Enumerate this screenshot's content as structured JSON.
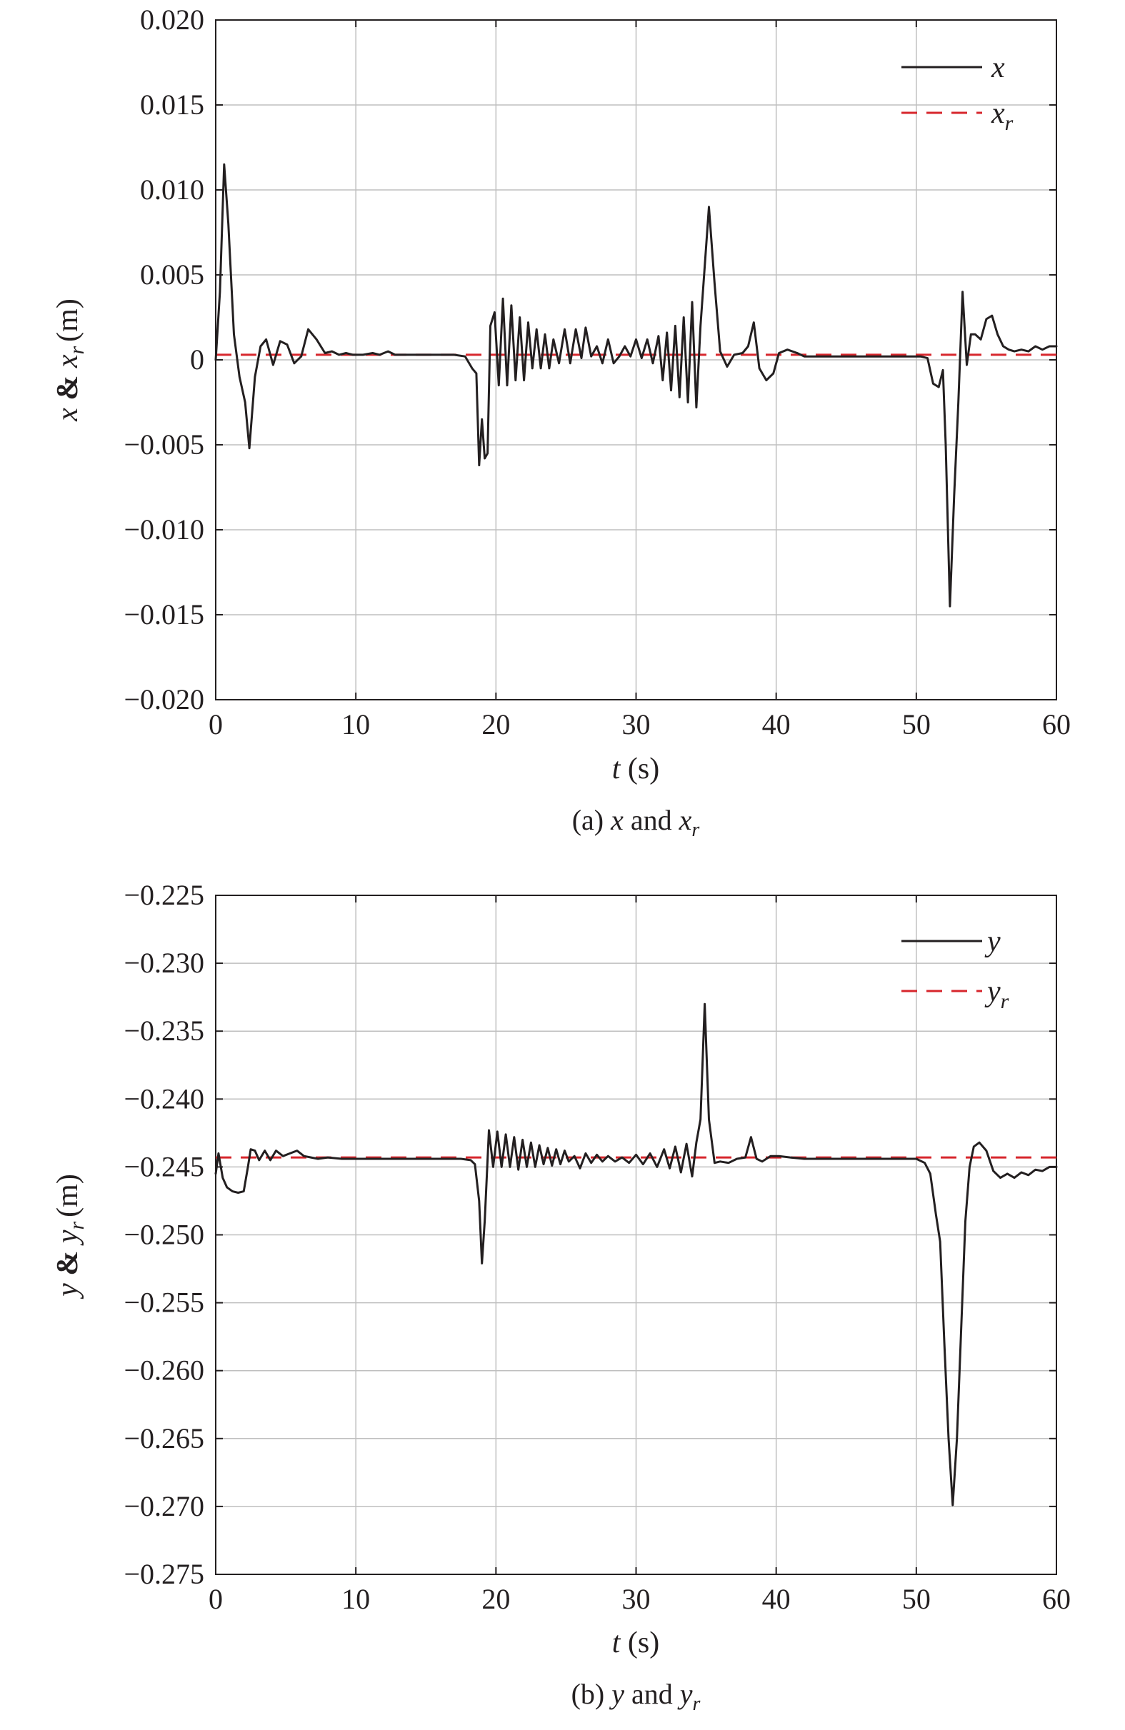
{
  "chart_data": [
    {
      "type": "line",
      "caption_prefix": "(a)",
      "caption_var": "x",
      "caption_and": "and",
      "caption_ref": "x",
      "caption_ref_sub": "r",
      "ylabel_var": "x",
      "ylabel_amp": "&",
      "ylabel_ref": "x",
      "ylabel_ref_sub": "r",
      "ylabel_unit": "(m)",
      "xlabel_var": "t",
      "xlabel_unit": "(s)",
      "xlim": [
        0,
        60
      ],
      "ylim": [
        -0.02,
        0.02
      ],
      "xticks": [
        0,
        10,
        20,
        30,
        40,
        50,
        60
      ],
      "xtick_labels": [
        "0",
        "10",
        "20",
        "30",
        "40",
        "50",
        "60"
      ],
      "yticks": [
        0.02,
        0.015,
        0.01,
        0.005,
        0,
        -0.005,
        -0.01,
        -0.015,
        -0.02
      ],
      "ytick_labels": [
        "0.020",
        "0.015",
        "0.010",
        "0.005",
        "0",
        "−0.005",
        "−0.010",
        "−0.015",
        "−0.020"
      ],
      "grid": true,
      "legend_position": "top-right",
      "colors": {
        "actual": "#231f20",
        "reference": "#d7262c",
        "grid": "#bfbfbf"
      },
      "series": [
        {
          "name": "x",
          "style": "solid",
          "x": [
            0,
            0.3,
            0.6,
            0.9,
            1.3,
            1.7,
            2.1,
            2.4,
            2.8,
            3.2,
            3.6,
            4.1,
            4.6,
            5.1,
            5.6,
            6.1,
            6.6,
            7.2,
            7.8,
            8.3,
            8.8,
            9.3,
            9.8,
            10.5,
            11.2,
            11.7,
            12.3,
            12.8,
            13.3,
            14,
            15,
            16,
            17,
            17.8,
            18.3,
            18.6,
            18.8,
            19.0,
            19.2,
            19.4,
            19.6,
            19.9,
            20.2,
            20.5,
            20.8,
            21.1,
            21.4,
            21.7,
            22.0,
            22.3,
            22.6,
            22.9,
            23.2,
            23.5,
            23.8,
            24.1,
            24.5,
            24.9,
            25.3,
            25.7,
            26.1,
            26.4,
            26.8,
            27.2,
            27.6,
            28.0,
            28.4,
            28.8,
            29.2,
            29.6,
            30.0,
            30.4,
            30.8,
            31.2,
            31.6,
            31.9,
            32.2,
            32.5,
            32.8,
            33.1,
            33.4,
            33.7,
            34.0,
            34.3,
            34.6,
            34.9,
            35.2,
            35.6,
            36.0,
            36.5,
            37.0,
            37.6,
            38.0,
            38.4,
            38.8,
            39.3,
            39.8,
            40.2,
            40.8,
            41.5,
            42,
            43,
            45,
            47,
            49,
            50.3,
            50.8,
            51.2,
            51.6,
            51.9,
            52.1,
            52.4,
            52.7,
            53.0,
            53.3,
            53.6,
            53.9,
            54.2,
            54.6,
            55.0,
            55.4,
            55.8,
            56.2,
            56.6,
            57.0,
            57.5,
            58.0,
            58.5,
            59.0,
            59.5,
            60
          ],
          "y": [
            0,
            0.004,
            0.0115,
            0.008,
            0.0015,
            -0.001,
            -0.0025,
            -0.0052,
            -0.001,
            0.0008,
            0.0012,
            -0.0003,
            0.0011,
            0.0009,
            -0.0002,
            0.0002,
            0.0018,
            0.0012,
            0.0004,
            0.0005,
            0.0003,
            0.0004,
            0.0003,
            0.0003,
            0.0004,
            0.0003,
            0.0005,
            0.0003,
            0.0003,
            0.0003,
            0.0003,
            0.0003,
            0.0003,
            0.0002,
            -0.0005,
            -0.0008,
            -0.0062,
            -0.0035,
            -0.0058,
            -0.0055,
            0.002,
            0.0028,
            -0.0015,
            0.0036,
            -0.0015,
            0.0032,
            -0.0012,
            0.0025,
            -0.0012,
            0.0022,
            -0.0005,
            0.0018,
            -0.0005,
            0.0015,
            -0.0005,
            0.0012,
            -0.0002,
            0.0018,
            -0.0002,
            0.0018,
            0.0001,
            0.0019,
            0.0002,
            0.0008,
            -0.0002,
            0.0012,
            -0.0002,
            0.0002,
            0.0008,
            0.0002,
            0.0012,
            0.0001,
            0.0012,
            -0.0002,
            0.0014,
            -0.0012,
            0.0016,
            -0.0018,
            0.002,
            -0.0022,
            0.0025,
            -0.0025,
            0.0034,
            -0.0028,
            0.002,
            0.0055,
            0.009,
            0.0045,
            0.0005,
            -0.0004,
            0.0003,
            0.0004,
            0.0008,
            0.0022,
            -0.0005,
            -0.0012,
            -0.0008,
            0.0004,
            0.0006,
            0.0004,
            0.0002,
            0.0002,
            0.0002,
            0.0002,
            0.0002,
            0.0002,
            0.0001,
            -0.0014,
            -0.0016,
            -0.0006,
            -0.005,
            -0.0145,
            -0.008,
            -0.0025,
            0.004,
            -0.0003,
            0.0015,
            0.0015,
            0.0012,
            0.0024,
            0.0026,
            0.0015,
            0.0008,
            0.0006,
            0.0005,
            0.0006,
            0.0005,
            0.0008,
            0.0006,
            0.0008,
            0.0008
          ]
        },
        {
          "name": "x_r",
          "label": "x",
          "label_sub": "r",
          "style": "dashed",
          "x": [
            0,
            60
          ],
          "y": [
            0.0003,
            0.0003
          ]
        }
      ]
    },
    {
      "type": "line",
      "caption_prefix": "(b)",
      "caption_var": "y",
      "caption_and": "and",
      "caption_ref": "y",
      "caption_ref_sub": "r",
      "ylabel_var": "y",
      "ylabel_amp": "&",
      "ylabel_ref": "y",
      "ylabel_ref_sub": "r",
      "ylabel_unit": "(m)",
      "xlabel_var": "t",
      "xlabel_unit": "(s)",
      "xlim": [
        0,
        60
      ],
      "ylim": [
        -0.275,
        -0.225
      ],
      "xticks": [
        0,
        10,
        20,
        30,
        40,
        50,
        60
      ],
      "xtick_labels": [
        "0",
        "10",
        "20",
        "30",
        "40",
        "50",
        "60"
      ],
      "yticks": [
        -0.225,
        -0.23,
        -0.235,
        -0.24,
        -0.245,
        -0.25,
        -0.255,
        -0.26,
        -0.265,
        -0.27,
        -0.275
      ],
      "ytick_labels": [
        "−0.225",
        "−0.230",
        "−0.235",
        "−0.240",
        "−0.245",
        "−0.250",
        "−0.255",
        "−0.260",
        "−0.265",
        "−0.270",
        "−0.275"
      ],
      "grid": true,
      "legend_position": "top-right",
      "colors": {
        "actual": "#231f20",
        "reference": "#d7262c",
        "grid": "#bfbfbf"
      },
      "series": [
        {
          "name": "y",
          "style": "solid",
          "x": [
            0,
            0.2,
            0.5,
            0.8,
            1.2,
            1.6,
            2.0,
            2.3,
            2.5,
            2.8,
            3.1,
            3.5,
            3.9,
            4.3,
            4.8,
            5.3,
            5.8,
            6.3,
            6.8,
            7.3,
            8,
            9,
            10,
            12,
            14,
            16,
            17.5,
            18.2,
            18.5,
            18.8,
            19.0,
            19.2,
            19.5,
            19.8,
            20.1,
            20.4,
            20.7,
            21.0,
            21.3,
            21.6,
            21.9,
            22.2,
            22.5,
            22.8,
            23.1,
            23.4,
            23.7,
            24.0,
            24.3,
            24.6,
            24.9,
            25.2,
            25.6,
            26.0,
            26.4,
            26.8,
            27.2,
            27.6,
            28.0,
            28.5,
            29.0,
            29.5,
            30.0,
            30.5,
            31.0,
            31.5,
            32.0,
            32.4,
            32.8,
            33.2,
            33.6,
            34.0,
            34.3,
            34.6,
            34.9,
            35.2,
            35.6,
            36.0,
            36.6,
            37.2,
            37.8,
            38.2,
            38.6,
            39.0,
            39.6,
            40.2,
            41,
            42,
            44,
            46,
            48,
            50,
            50.6,
            51.0,
            51.4,
            51.7,
            52.0,
            52.3,
            52.6,
            52.9,
            53.2,
            53.5,
            53.8,
            54.1,
            54.5,
            55.0,
            55.5,
            56.0,
            56.5,
            57.0,
            57.5,
            58.0,
            58.5,
            59.0,
            59.5,
            60
          ],
          "y": [
            -0.2455,
            -0.244,
            -0.2458,
            -0.2465,
            -0.2468,
            -0.2469,
            -0.2468,
            -0.245,
            -0.2437,
            -0.2438,
            -0.2445,
            -0.2438,
            -0.2445,
            -0.2438,
            -0.2442,
            -0.244,
            -0.2438,
            -0.2442,
            -0.2443,
            -0.2444,
            -0.2443,
            -0.2444,
            -0.2444,
            -0.2444,
            -0.2444,
            -0.2444,
            -0.2444,
            -0.2445,
            -0.2448,
            -0.2475,
            -0.2521,
            -0.249,
            -0.2423,
            -0.245,
            -0.2424,
            -0.245,
            -0.2426,
            -0.245,
            -0.2428,
            -0.2452,
            -0.243,
            -0.245,
            -0.2432,
            -0.245,
            -0.2434,
            -0.2448,
            -0.2436,
            -0.2449,
            -0.2437,
            -0.2448,
            -0.2438,
            -0.2446,
            -0.2442,
            -0.2451,
            -0.244,
            -0.2447,
            -0.2441,
            -0.2446,
            -0.2442,
            -0.2446,
            -0.2443,
            -0.2447,
            -0.2441,
            -0.2448,
            -0.244,
            -0.245,
            -0.2437,
            -0.2451,
            -0.2435,
            -0.2454,
            -0.2433,
            -0.2457,
            -0.2432,
            -0.2415,
            -0.233,
            -0.2415,
            -0.2447,
            -0.2446,
            -0.2447,
            -0.2444,
            -0.2443,
            -0.2428,
            -0.2444,
            -0.2446,
            -0.2442,
            -0.2442,
            -0.2443,
            -0.2444,
            -0.2444,
            -0.2444,
            -0.2444,
            -0.2444,
            -0.2447,
            -0.2455,
            -0.2485,
            -0.2505,
            -0.258,
            -0.265,
            -0.2699,
            -0.265,
            -0.257,
            -0.249,
            -0.245,
            -0.2435,
            -0.2432,
            -0.2438,
            -0.2453,
            -0.2458,
            -0.2455,
            -0.2458,
            -0.2454,
            -0.2456,
            -0.2452,
            -0.2453,
            -0.245,
            -0.245
          ]
        },
        {
          "name": "y_r",
          "label": "y",
          "label_sub": "r",
          "style": "dashed",
          "x": [
            0,
            60
          ],
          "y": [
            -0.2443,
            -0.2443
          ]
        }
      ]
    }
  ]
}
